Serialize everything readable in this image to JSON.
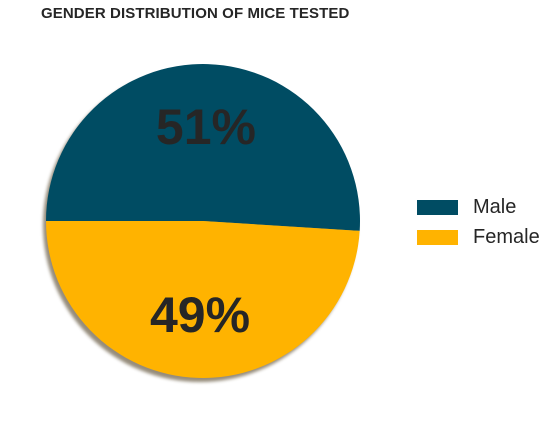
{
  "chart_data": {
    "type": "pie",
    "title": "GENDER DISTRIBUTION OF MICE TESTED",
    "categories": [
      "Male",
      "Female"
    ],
    "values": [
      51,
      49
    ],
    "labels": [
      "51%",
      "49%"
    ],
    "colors": [
      "#004C63",
      "#FFB300"
    ],
    "legend_position": "right",
    "shadow": true
  }
}
